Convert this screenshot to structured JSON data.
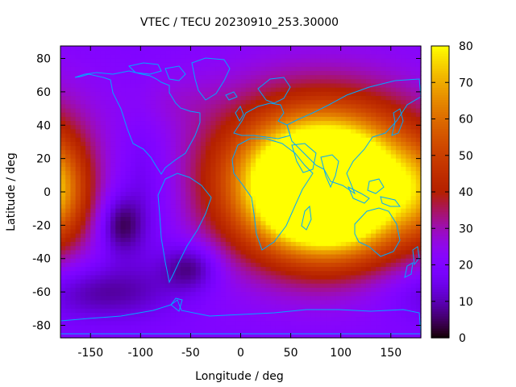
{
  "chart_data": {
    "type": "heatmap",
    "title": "VTEC / TECU 20230910_253.30000",
    "xlabel": "Longitude / deg",
    "ylabel": "Latitude / deg",
    "xlim": [
      -180,
      180
    ],
    "ylim": [
      -87.5,
      87.5
    ],
    "x_ticks": [
      -150,
      -100,
      -50,
      0,
      50,
      100,
      150
    ],
    "y_ticks": [
      -80,
      -60,
      -40,
      -20,
      0,
      20,
      40,
      60,
      80
    ],
    "colorbar": {
      "range": [
        0,
        80
      ],
      "ticks": [
        0,
        10,
        20,
        30,
        40,
        50,
        60,
        70,
        80
      ],
      "colormap": "black-purple-red-orange-yellow"
    },
    "features": [
      {
        "lon": 85,
        "lat": 0,
        "value": 78,
        "sx": 50,
        "sy": 25
      },
      {
        "lon": 80,
        "lat": 10,
        "value": 50,
        "sx": 80,
        "sy": 35
      },
      {
        "lon": -120,
        "lat": -20,
        "value": -15,
        "sx": 15,
        "sy": 12
      },
      {
        "lon": -50,
        "lat": -45,
        "value": -15,
        "sx": 20,
        "sy": 10
      },
      {
        "lon": -140,
        "lat": -60,
        "value": -12,
        "sx": 50,
        "sy": 12
      },
      {
        "lon": -100,
        "lat": 0,
        "value": -8,
        "sx": 30,
        "sy": 30
      },
      {
        "lon": -180,
        "lat": 0,
        "value": 18,
        "sx": 20,
        "sy": 20
      },
      {
        "lon": -70,
        "lat": 55,
        "value": 4,
        "sx": 30,
        "sy": 12
      }
    ],
    "background_value": 20
  },
  "colors": {
    "coastline": "#00a8ff",
    "axis": "#000000"
  }
}
